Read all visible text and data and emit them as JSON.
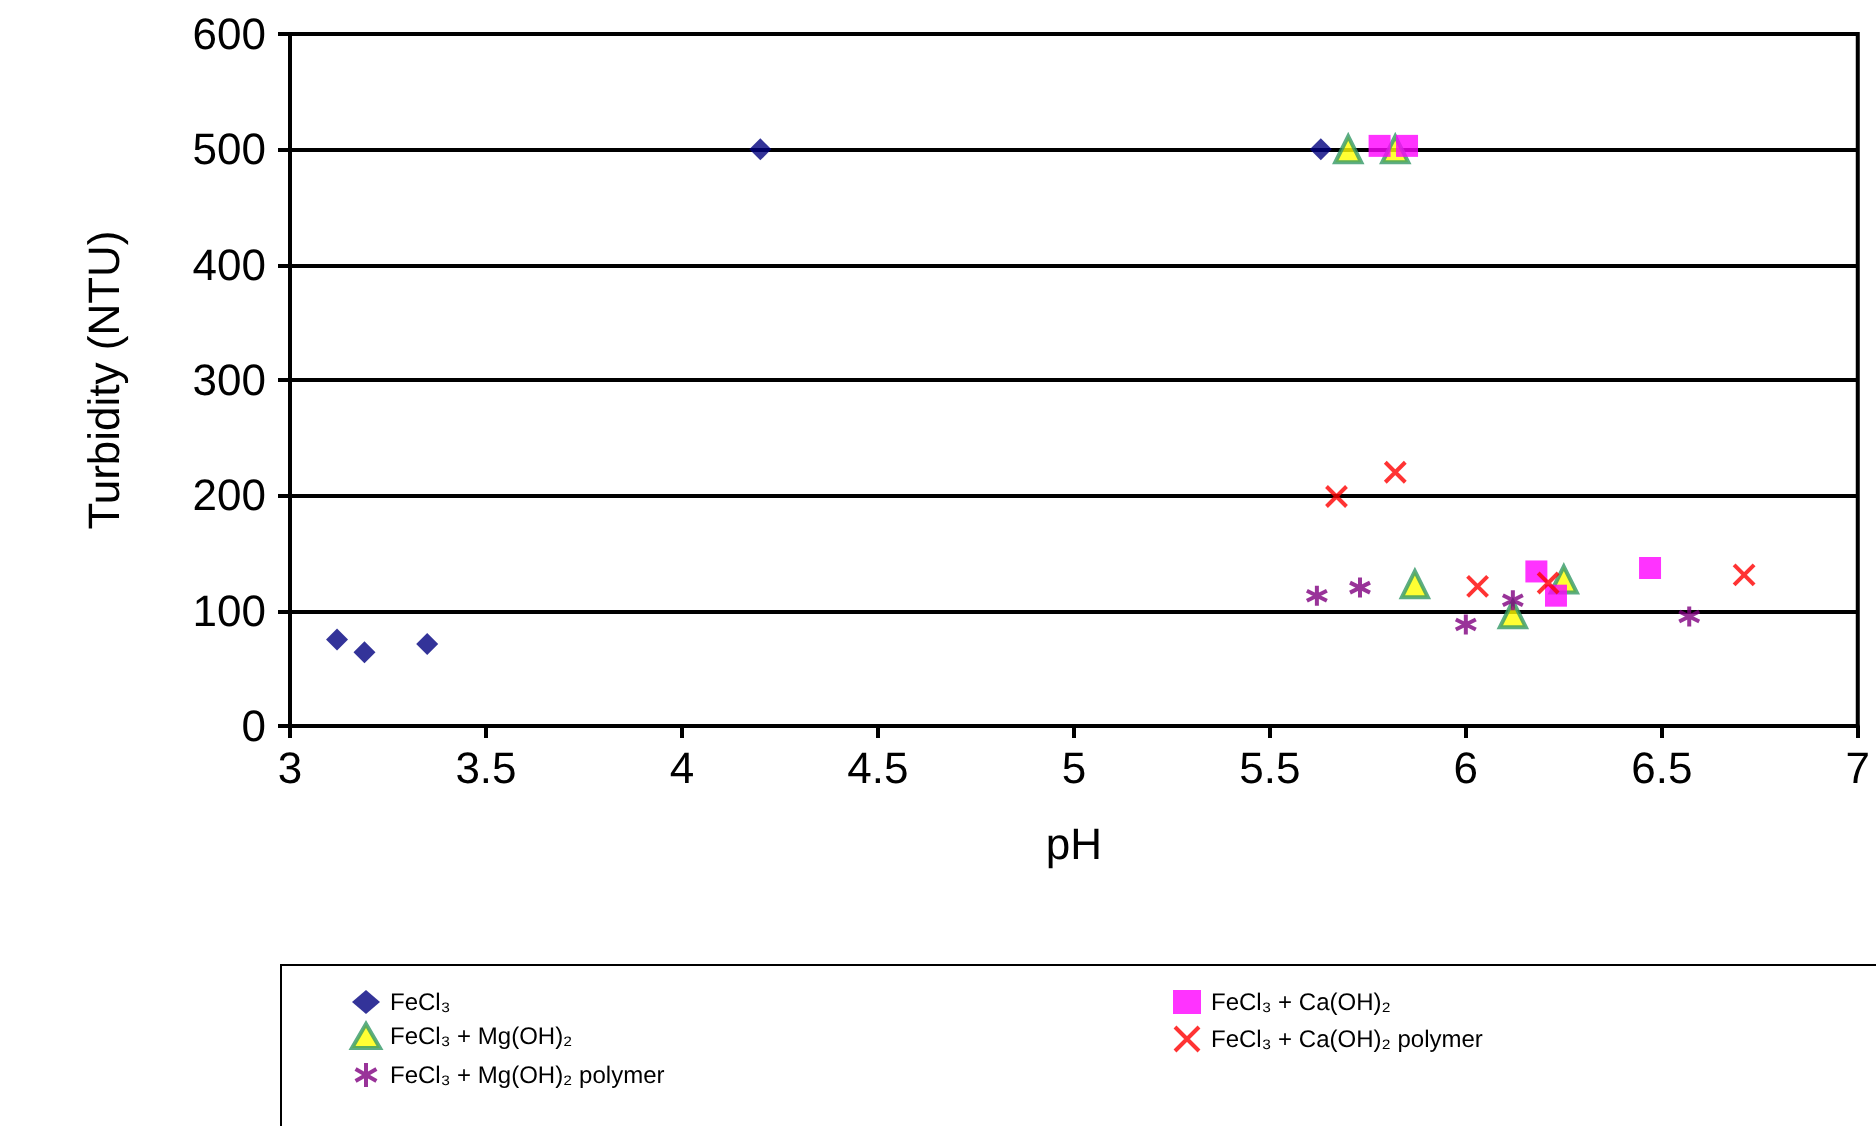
{
  "chart_data": {
    "type": "scatter",
    "xlabel": "pH",
    "ylabel": "Turbidity (NTU)",
    "xlim": [
      3,
      7
    ],
    "xticks": [
      3,
      3.5,
      4,
      4.5,
      5,
      5.5,
      6,
      6.5,
      7
    ],
    "ylim": [
      0,
      600
    ],
    "yticks": [
      0,
      100,
      200,
      300,
      400,
      500,
      600
    ],
    "grid": "y",
    "legend": "bottom",
    "series": [
      {
        "name": "FeCl₃",
        "color": "#000080",
        "marker": "diamond",
        "x": [
          3.12,
          3.19,
          3.35,
          4.2,
          5.63
        ],
        "values": [
          75,
          64,
          71,
          500,
          500
        ]
      },
      {
        "name": "FeCl₃ + Mg(OH)₂",
        "color": "#ffff00",
        "marker": "triangle",
        "x": [
          5.7,
          5.82,
          5.87,
          6.12,
          6.25
        ],
        "values": [
          500,
          500,
          123,
          97,
          127
        ]
      },
      {
        "name": "FeCl₃ + Mg(OH)₂ polymer",
        "color": "#800080",
        "x": [
          5.62,
          5.73,
          6.0,
          6.12,
          6.57
        ],
        "values": [
          113,
          120,
          88,
          109,
          95
        ]
      },
      {
        "name": "FeCl₃ + Ca(OH)₂",
        "color": "#ff00ff",
        "marker": "square",
        "x": [
          5.78,
          5.85,
          6.18,
          6.23,
          6.47
        ],
        "values": [
          503,
          503,
          134,
          113,
          137
        ]
      },
      {
        "name": "FeCl₃ + Ca(OH)₂ polymer",
        "color": "#ff0000",
        "marker": "cross",
        "x": [
          5.67,
          5.82,
          6.03,
          6.21,
          6.71
        ],
        "values": [
          199,
          220,
          121,
          124,
          131
        ]
      }
    ]
  }
}
